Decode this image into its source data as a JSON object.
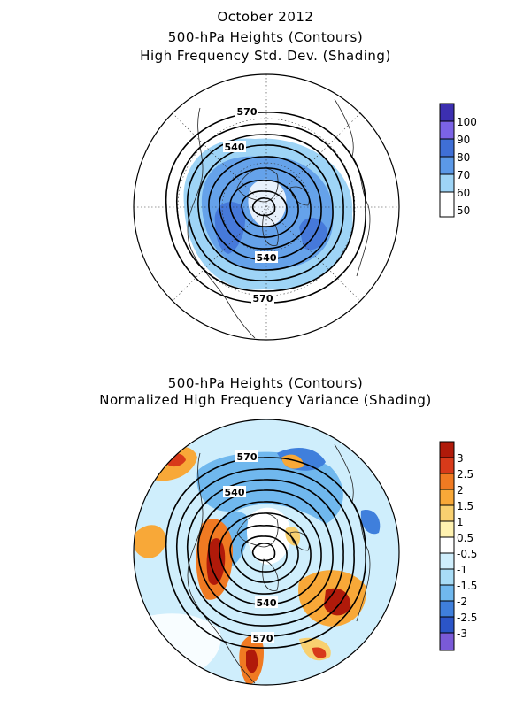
{
  "top": {
    "title_lines": [
      "October 2012",
      "500-hPa Heights (Contours)",
      "High Frequency Std. Dev. (Shading)"
    ],
    "contour_labels": [
      "570",
      "540",
      "540",
      "570"
    ],
    "colorbar": {
      "labels": [
        "100",
        "90",
        "80",
        "70",
        "60",
        "50"
      ],
      "colors": [
        "#3c2fb0",
        "#7b63e6",
        "#3f6fd6",
        "#5b99e8",
        "#9ed4f6",
        "#ffffff"
      ]
    }
  },
  "bottom": {
    "title_lines": [
      "500-hPa Heights (Contours)",
      "Normalized High Frequency Variance (Shading)"
    ],
    "contour_labels": [
      "570",
      "540",
      "540",
      "570"
    ],
    "colorbar": {
      "labels": [
        "3",
        "2.5",
        "2",
        "1.5",
        "1",
        "0.5",
        "-0.5",
        "-1",
        "-1.5",
        "-2",
        "-2.5",
        "-3"
      ],
      "colors": [
        "#b01a0a",
        "#d83a1a",
        "#f07a22",
        "#f8a838",
        "#f8d070",
        "#fff2b0",
        "#ffffff",
        "#cfeefc",
        "#a8dcf6",
        "#70b8ee",
        "#3f7fdc",
        "#2b55c8",
        "#7a5ad8"
      ]
    }
  }
}
